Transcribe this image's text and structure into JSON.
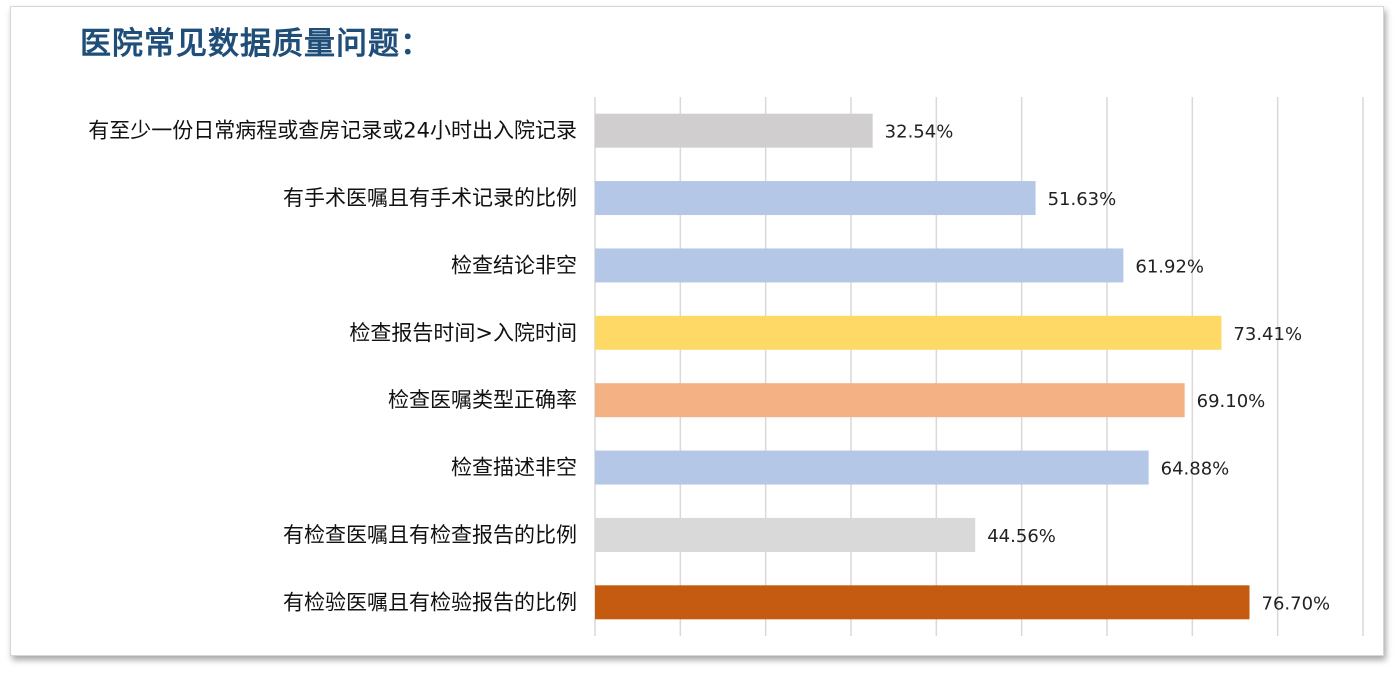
{
  "title": "医院常见数据质量问题：",
  "chart_data": {
    "type": "bar",
    "orientation": "horizontal",
    "title": "医院常见数据质量问题：",
    "categories": [
      "有至少一份日常病程或查房记录或24小时出入院记录",
      "有手术医嘱且有手术记录的比例",
      "检查结论非空",
      "检查报告时间>入院时间",
      "检查医嘱类型正确率",
      "检查描述非空",
      "有检查医嘱且有检查报告的比例",
      "有检验医嘱且有检验报告的比例"
    ],
    "values": [
      32.54,
      51.63,
      61.92,
      73.41,
      69.1,
      64.88,
      44.56,
      76.7
    ],
    "labels": [
      "32.54%",
      "51.63%",
      "61.92%",
      "73.41%",
      "69.10%",
      "64.88%",
      "44.56%",
      "76.70%"
    ],
    "colors": [
      "#d0cece",
      "#b4c7e7",
      "#b4c7e7",
      "#ffd966",
      "#f4b183",
      "#b4c7e7",
      "#d9d9d9",
      "#c55a11"
    ],
    "xlim": [
      0,
      90
    ],
    "grid": true,
    "gridline_color": "#d9d9d9",
    "legend": "none"
  }
}
